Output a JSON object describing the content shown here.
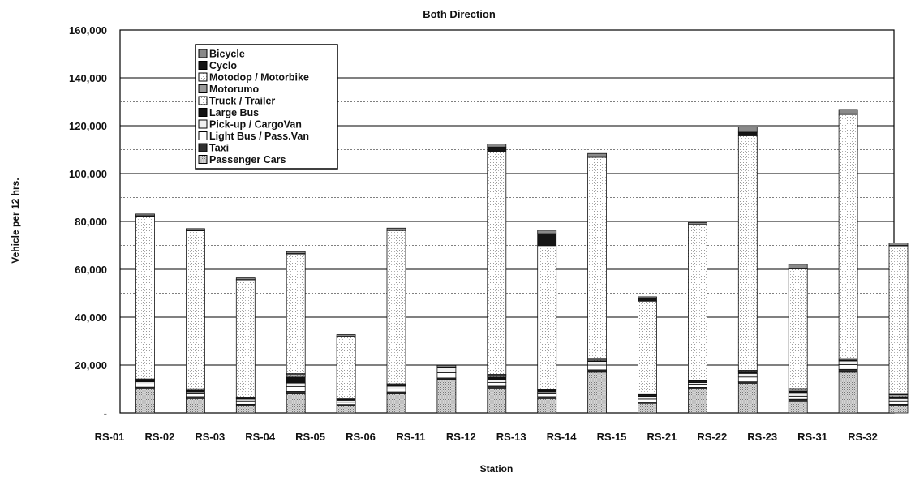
{
  "chart_data": {
    "type": "bar",
    "stacked": true,
    "title": "Both Direction",
    "xlabel": "Station",
    "ylabel": "Vehicle per 12 hrs.",
    "ylim": [
      0,
      160000
    ],
    "yticks": [
      "160,000",
      "140,000",
      "120,000",
      "100,000",
      "80,000",
      "60,000",
      "40,000",
      "20,000",
      "-"
    ],
    "grid": true,
    "legend_placement": "top-left",
    "categories": [
      "RS-01",
      "RS-02",
      "RS-03",
      "RS-04",
      "RS-05",
      "RS-06",
      "RS-11",
      "RS-12",
      "RS-13",
      "RS-14",
      "RS-15",
      "RS-21",
      "RS-22",
      "RS-23",
      "RS-31",
      "RS-32"
    ],
    "series": [
      {
        "name": "Passenger Cars",
        "color": "#b8b8b8",
        "values": [
          10000,
          6000,
          3000,
          8000,
          3000,
          8000,
          14000,
          10000,
          6000,
          17000,
          4000,
          10000,
          12000,
          5000,
          17000,
          3000
        ]
      },
      {
        "name": "Taxi",
        "color": "#303030",
        "values": [
          800,
          800,
          600,
          1000,
          500,
          800,
          600,
          1200,
          800,
          1000,
          600,
          700,
          1000,
          700,
          1200,
          600
        ]
      },
      {
        "name": "Light Bus / Pass.Van",
        "color": "#ffffff",
        "values": [
          1200,
          1200,
          1400,
          2000,
          1000,
          1200,
          2200,
          1500,
          1200,
          2000,
          1200,
          1000,
          2000,
          1300,
          2000,
          1400
        ]
      },
      {
        "name": "Pick-up / CargoVan",
        "color": "#f0f0f0",
        "values": [
          1000,
          800,
          800,
          1500,
          800,
          1200,
          2000,
          1000,
          800,
          1500,
          1000,
          1000,
          1500,
          1200,
          1500,
          1000
        ]
      },
      {
        "name": "Large Bus",
        "color": "#111111",
        "values": [
          500,
          600,
          300,
          2500,
          300,
          500,
          200,
          1300,
          600,
          300,
          400,
          300,
          600,
          1000,
          300,
          800
        ]
      },
      {
        "name": "Truck / Trailer",
        "color": "#cfcfcf",
        "values": [
          400,
          400,
          300,
          1000,
          200,
          300,
          200,
          700,
          300,
          500,
          300,
          300,
          400,
          600,
          400,
          700
        ]
      },
      {
        "name": "Motorumo",
        "color": "#9a9a9a",
        "values": [
          300,
          300,
          200,
          400,
          100,
          200,
          0,
          400,
          200,
          500,
          200,
          200,
          300,
          400,
          300,
          300
        ]
      },
      {
        "name": "Motodop / Motorbike",
        "color": "#eeeeee",
        "values": [
          68000,
          66000,
          49000,
          50000,
          26000,
          64000,
          0,
          93000,
          60000,
          84000,
          39000,
          65000,
          98000,
          50000,
          102000,
          62000
        ]
      },
      {
        "name": "Cyclo",
        "color": "#151515",
        "values": [
          200,
          200,
          100,
          200,
          100,
          200,
          0,
          2000,
          5000,
          300,
          1200,
          200,
          1500,
          200,
          300,
          200
        ]
      },
      {
        "name": "Bicycle",
        "color": "#8a8a8a",
        "values": [
          700,
          700,
          700,
          800,
          700,
          800,
          700,
          1300,
          1400,
          1300,
          600,
          800,
          2200,
          1700,
          1800,
          1000
        ]
      }
    ]
  }
}
